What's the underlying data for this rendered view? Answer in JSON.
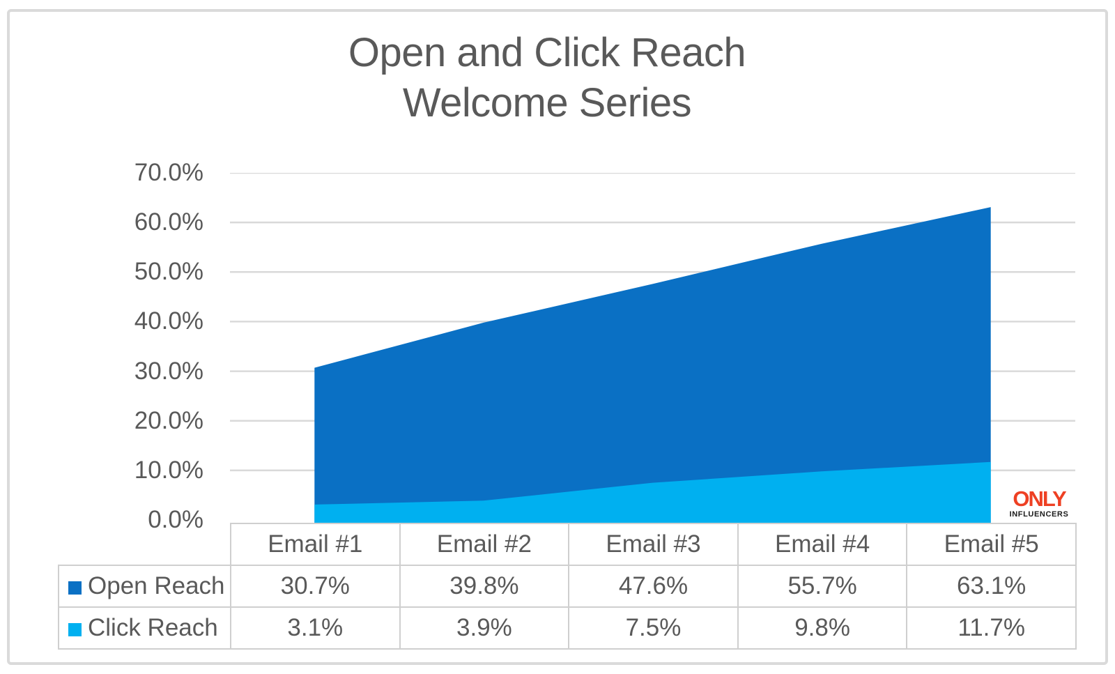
{
  "title": {
    "line1": "Open and Click Reach",
    "line2": "Welcome Series"
  },
  "colors": {
    "open_reach": "#0a70c4",
    "click_reach": "#00b0f0",
    "gridline": "#d9d9d9",
    "text": "#595959",
    "table_border": "#cfcfcf",
    "logo_orange": "#ee4023"
  },
  "logo": {
    "line1": "ONLY",
    "line2": "INFLUENCERS"
  },
  "chart_data": {
    "type": "area",
    "title": "Open and Click Reach Welcome Series",
    "categories": [
      "Email #1",
      "Email #2",
      "Email #3",
      "Email #4",
      "Email #5"
    ],
    "series": [
      {
        "name": "Open Reach",
        "values": [
          30.7,
          39.8,
          47.6,
          55.7,
          63.1
        ],
        "color": "#0a70c4"
      },
      {
        "name": "Click Reach",
        "values": [
          3.1,
          3.9,
          7.5,
          9.8,
          11.7
        ],
        "color": "#00b0f0"
      }
    ],
    "xlabel": "",
    "ylabel": "",
    "ylim": [
      0,
      70
    ],
    "yticks": [
      "70.0%",
      "60.0%",
      "50.0%",
      "40.0%",
      "30.0%",
      "20.0%",
      "10.0%",
      "0.0%"
    ],
    "grid": true,
    "legend_position": "table-left"
  },
  "table": {
    "headers": [
      "Email #1",
      "Email #2",
      "Email #3",
      "Email #4",
      "Email #5"
    ],
    "rows": [
      {
        "label": "Open Reach",
        "swatch_color": "#0a70c4",
        "values": [
          "30.7%",
          "39.8%",
          "47.6%",
          "55.7%",
          "63.1%"
        ]
      },
      {
        "label": "Click Reach",
        "swatch_color": "#00b0f0",
        "values": [
          "3.1%",
          "3.9%",
          "7.5%",
          "9.8%",
          "11.7%"
        ]
      }
    ]
  }
}
